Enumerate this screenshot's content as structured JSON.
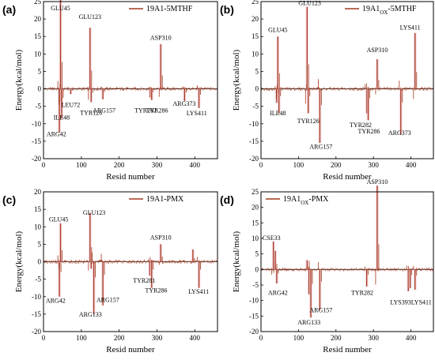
{
  "palette": {
    "line": "#a33a1e",
    "shade": "#f3c6d3",
    "axis": "#000000",
    "zero": "#111111"
  },
  "panels": [
    {
      "label": "(a)",
      "legend": {
        "base": "19A1-5MTHF",
        "sub": "",
        "tail": ""
      },
      "ylabel": "Energy(kcal/mol)",
      "xlabel": "Resid number"
    },
    {
      "label": "(b)",
      "legend": {
        "base": "19A1",
        "sub": "OX",
        "tail": "-5MTHF"
      },
      "ylabel": "Energy(kcal/mol)",
      "xlabel": "Resid number"
    },
    {
      "label": "(c)",
      "legend": {
        "base": "19A1-PMX",
        "sub": "",
        "tail": ""
      },
      "ylabel": "Energy(kcal/mol)",
      "xlabel": "Resid number"
    },
    {
      "label": "(d)",
      "legend": {
        "base": "19A1",
        "sub": "OX",
        "tail": "-PMX"
      },
      "ylabel": "Energy(kcal/mol)",
      "xlabel": "Resid number"
    }
  ],
  "chart_data": [
    {
      "type": "line",
      "legend": "19A1-5MTHF",
      "xlabel": "Resid number",
      "ylabel": "Energy(kcal/mol)",
      "xlim": [
        0,
        460
      ],
      "ylim": [
        -20,
        25
      ],
      "xticks": [
        0,
        100,
        200,
        300,
        400
      ],
      "yticks": [
        -20,
        -15,
        -10,
        -5,
        0,
        5,
        10,
        15,
        20,
        25
      ],
      "peaks": [
        [
          42,
          -12.5
        ],
        [
          45,
          25.5
        ],
        [
          48,
          -8.5
        ],
        [
          72,
          -1.5
        ],
        [
          123,
          17.5
        ],
        [
          126,
          -3.8
        ],
        [
          157,
          -3
        ],
        [
          282,
          -2.5
        ],
        [
          286,
          -3.2
        ],
        [
          310,
          12.8
        ],
        [
          373,
          -3.5
        ],
        [
          411,
          -5.5
        ]
      ],
      "labels": [
        {
          "text": "GLU45",
          "x": 45,
          "y": 22.5
        },
        {
          "text": "GLU123",
          "x": 123,
          "y": 20
        },
        {
          "text": "ASP310",
          "x": 310,
          "y": 14
        },
        {
          "text": "LEU72",
          "x": 72,
          "y": -5.2
        },
        {
          "text": "ILE48",
          "x": 48,
          "y": -8.8
        },
        {
          "text": "TYR126",
          "x": 126,
          "y": -7.5
        },
        {
          "text": "ARG157",
          "x": 160,
          "y": -6.8
        },
        {
          "text": "TYR282",
          "x": 270,
          "y": -6.8
        },
        {
          "text": "TYR286",
          "x": 300,
          "y": -6.8
        },
        {
          "text": "ARG373",
          "x": 372,
          "y": -4.8
        },
        {
          "text": "LYS411",
          "x": 405,
          "y": -7.6
        },
        {
          "text": "ARG42",
          "x": 34,
          "y": -13.6
        }
      ]
    },
    {
      "type": "line",
      "legend": "19A1OX-5MTHF",
      "xlabel": "Resid number",
      "ylabel": "Energy(kcal/mol)",
      "xlim": [
        0,
        460
      ],
      "ylim": [
        -20,
        25
      ],
      "xticks": [
        0,
        100,
        200,
        300,
        400
      ],
      "yticks": [
        -20,
        -15,
        -10,
        -5,
        0,
        5,
        10,
        15,
        20,
        25
      ],
      "peaks": [
        [
          42,
          -4
        ],
        [
          45,
          15
        ],
        [
          48,
          -7
        ],
        [
          123,
          23.5
        ],
        [
          126,
          -7
        ],
        [
          157,
          -15.5
        ],
        [
          282,
          -7
        ],
        [
          286,
          -9
        ],
        [
          310,
          8.5
        ],
        [
          373,
          -13
        ],
        [
          411,
          16
        ]
      ],
      "labels": [
        {
          "text": "GLU123",
          "x": 130,
          "y": 24
        },
        {
          "text": "GLU45",
          "x": 45,
          "y": 16.3
        },
        {
          "text": "LYS411",
          "x": 398,
          "y": 17
        },
        {
          "text": "ASP310",
          "x": 310,
          "y": 10.5
        },
        {
          "text": "ILE48",
          "x": 45,
          "y": -7.6
        },
        {
          "text": "TYR126",
          "x": 126,
          "y": -9.8
        },
        {
          "text": "TYR282",
          "x": 266,
          "y": -10.9
        },
        {
          "text": "TYR286",
          "x": 288,
          "y": -12.8
        },
        {
          "text": "ARG157",
          "x": 160,
          "y": -17.2
        },
        {
          "text": "ARG373",
          "x": 370,
          "y": -13.2
        }
      ]
    },
    {
      "type": "line",
      "legend": "19A1-PMX",
      "xlabel": "Resid number",
      "ylabel": "Energy(kcal/mol)",
      "xlim": [
        0,
        460
      ],
      "ylim": [
        -20,
        20
      ],
      "xticks": [
        0,
        100,
        200,
        300,
        400
      ],
      "yticks": [
        -20,
        -15,
        -10,
        -5,
        0,
        5,
        10,
        15,
        20
      ],
      "peaks": [
        [
          42,
          -10
        ],
        [
          45,
          11
        ],
        [
          123,
          14
        ],
        [
          126,
          -2
        ],
        [
          133,
          -15
        ],
        [
          157,
          -12.5
        ],
        [
          281,
          -4
        ],
        [
          286,
          -7.5
        ],
        [
          310,
          5
        ],
        [
          395,
          3.5
        ],
        [
          411,
          -7.5
        ]
      ],
      "labels": [
        {
          "text": "GLU45",
          "x": 40,
          "y": 11.5
        },
        {
          "text": "GLU123",
          "x": 134,
          "y": 13.5
        },
        {
          "text": "ASP310",
          "x": 310,
          "y": 6.3
        },
        {
          "text": "ARG42",
          "x": 32,
          "y": -11.8
        },
        {
          "text": "ARG157",
          "x": 170,
          "y": -11.5
        },
        {
          "text": "ARG133",
          "x": 124,
          "y": -15.7
        },
        {
          "text": "TYR281",
          "x": 266,
          "y": -6
        },
        {
          "text": "TYR286",
          "x": 298,
          "y": -8.8
        },
        {
          "text": "LYS411",
          "x": 410,
          "y": -9.2
        }
      ]
    },
    {
      "type": "line",
      "legend": "19A1OX-PMX",
      "xlabel": "Resid number",
      "ylabel": "Energy(kcal/mol)",
      "xlim": [
        0,
        460
      ],
      "ylim": [
        -20,
        25
      ],
      "xticks": [
        0,
        100,
        200,
        300,
        400
      ],
      "yticks": [
        -20,
        -15,
        -10,
        -5,
        0,
        5,
        10,
        15,
        20,
        25
      ],
      "peaks": [
        [
          33,
          9
        ],
        [
          38,
          6
        ],
        [
          42,
          -4.5
        ],
        [
          123,
          3
        ],
        [
          128,
          -8
        ],
        [
          133,
          -15.5
        ],
        [
          157,
          -13
        ],
        [
          282,
          -5.5
        ],
        [
          310,
          27
        ],
        [
          393,
          -7
        ],
        [
          398,
          -6
        ],
        [
          411,
          -6.5
        ]
      ],
      "labels": [
        {
          "text": "ASP310",
          "x": 310,
          "y": 27.5
        },
        {
          "text": "CSE33",
          "x": 28,
          "y": 9.5
        },
        {
          "text": "ARG42",
          "x": 45,
          "y": -8.2
        },
        {
          "text": "TYR282",
          "x": 270,
          "y": -8.2
        },
        {
          "text": "ARG157",
          "x": 160,
          "y": -13.8
        },
        {
          "text": "ARG133",
          "x": 128,
          "y": -17.7
        },
        {
          "text": "LYS393LYS411",
          "x": 400,
          "y": -11.2
        }
      ]
    }
  ]
}
